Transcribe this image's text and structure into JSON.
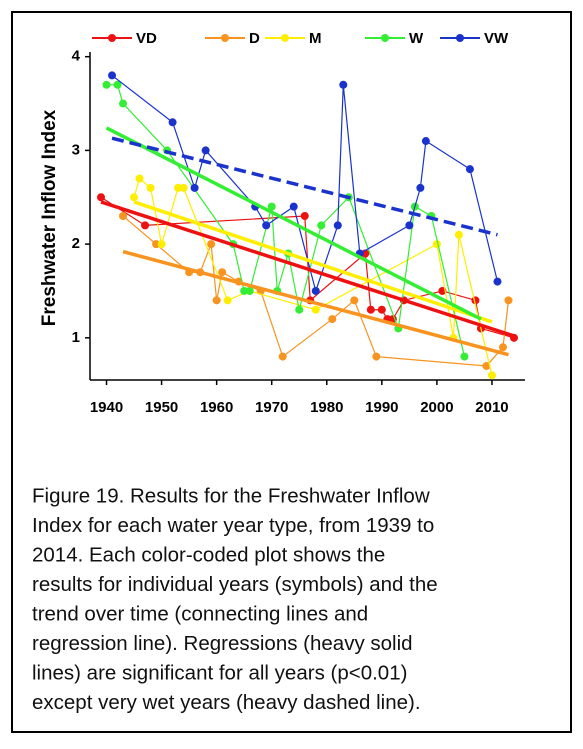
{
  "chart_data": {
    "type": "line",
    "y_label": "Freshwater Inflow Index",
    "xlim": [
      1937,
      2016
    ],
    "xticks": [
      1940,
      1950,
      1960,
      1970,
      1980,
      1990,
      2000,
      2010
    ],
    "ylim": [
      0.55,
      4.05
    ],
    "yticks": [
      1,
      2,
      3,
      4
    ],
    "series": [
      {
        "name": "VD",
        "color": "#ee1111",
        "x": [
          1939,
          1947,
          1976,
          1977,
          1987,
          1988,
          1990,
          1991,
          1992,
          1994,
          2001,
          2007,
          2008,
          2014
        ],
        "values": [
          2.5,
          2.2,
          2.3,
          1.4,
          1.9,
          1.3,
          1.3,
          1.2,
          1.2,
          1.4,
          1.5,
          1.4,
          1.1,
          1.0
        ],
        "trend": {
          "x": [
            1939,
            2014
          ],
          "values": [
            2.45,
            1.02
          ],
          "dashed": false
        }
      },
      {
        "name": "D",
        "color": "#f7931e",
        "x": [
          1943,
          1949,
          1955,
          1957,
          1959,
          1960,
          1961,
          1964,
          1968,
          1972,
          1981,
          1985,
          1989,
          2009,
          2012,
          2013
        ],
        "values": [
          2.3,
          2.0,
          1.7,
          1.7,
          2.0,
          1.4,
          1.7,
          1.6,
          1.5,
          0.8,
          1.2,
          1.4,
          0.8,
          0.7,
          0.9,
          1.4
        ],
        "trend": {
          "x": [
            1943,
            2013
          ],
          "values": [
            1.92,
            0.82
          ],
          "dashed": false
        }
      },
      {
        "name": "M",
        "color": "#ffee00",
        "x": [
          1945,
          1946,
          1948,
          1950,
          1953,
          1954,
          1962,
          1966,
          1978,
          2000,
          2003,
          2004,
          2010
        ],
        "values": [
          2.5,
          2.7,
          2.6,
          2.0,
          2.6,
          2.6,
          1.4,
          1.5,
          1.3,
          2.0,
          1.0,
          2.1,
          0.6
        ],
        "trend": {
          "x": [
            1945,
            2010
          ],
          "values": [
            2.45,
            1.17
          ],
          "dashed": false
        }
      },
      {
        "name": "W",
        "color": "#33ee33",
        "x": [
          1940,
          1942,
          1943,
          1951,
          1963,
          1965,
          1966,
          1970,
          1971,
          1973,
          1975,
          1979,
          1984,
          1993,
          1996,
          1999,
          2005
        ],
        "values": [
          3.7,
          3.7,
          3.5,
          3.0,
          2.0,
          1.5,
          1.5,
          2.4,
          1.5,
          1.9,
          1.3,
          2.2,
          2.5,
          1.1,
          2.4,
          2.3,
          0.8
        ],
        "trend": {
          "x": [
            1940,
            2008
          ],
          "values": [
            3.24,
            1.2
          ],
          "dashed": false
        }
      },
      {
        "name": "VW",
        "color": "#1a33cc",
        "x": [
          1941,
          1952,
          1956,
          1958,
          1967,
          1969,
          1974,
          1978,
          1982,
          1983,
          1986,
          1995,
          1997,
          1998,
          2006,
          2011
        ],
        "values": [
          3.8,
          3.3,
          2.6,
          3.0,
          2.4,
          2.2,
          2.4,
          1.5,
          2.2,
          3.7,
          1.9,
          2.2,
          2.6,
          3.1,
          2.8,
          1.6
        ],
        "trend": {
          "x": [
            1941,
            2011
          ],
          "values": [
            3.13,
            2.1
          ],
          "dashed": true
        }
      }
    ]
  },
  "caption": {
    "lines": [
      "Figure 19. Results for the Freshwater Inflow",
      "Index for each water year type, from 1939 to",
      "2014. Each color-coded plot shows the",
      "results for individual years  (symbols) and the",
      "trend over time (connecting lines and",
      "regression line). Regressions (heavy solid",
      "lines) are significant for all years (p<0.01)",
      "except very wet years (heavy dashed line)."
    ]
  }
}
